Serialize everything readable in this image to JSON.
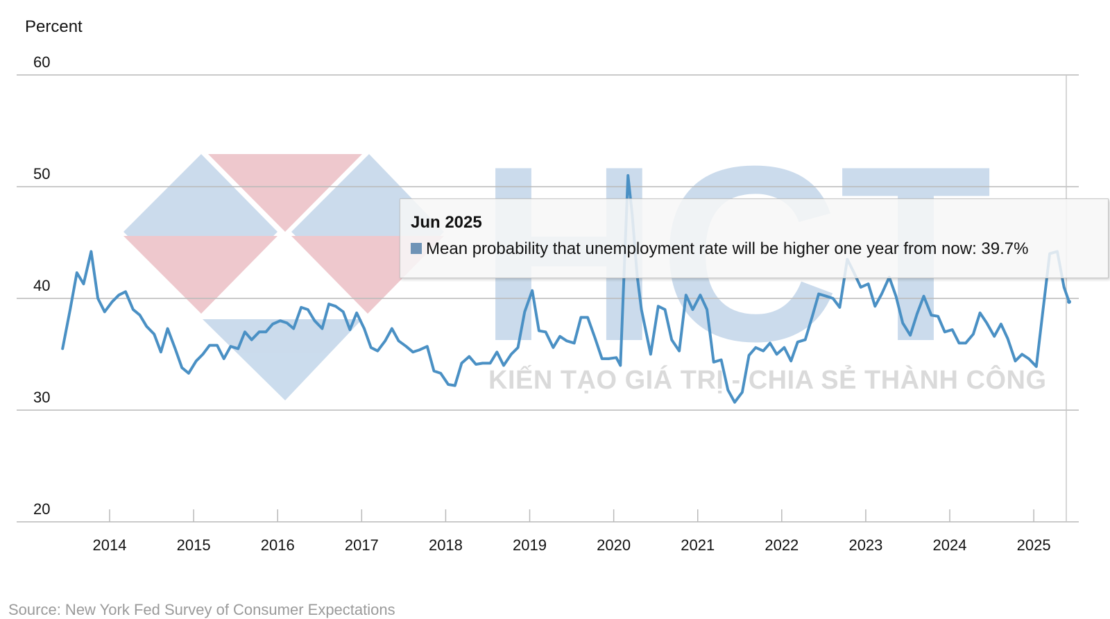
{
  "chart_data": {
    "type": "line",
    "ylabel": "Percent",
    "ylim": [
      20,
      60
    ],
    "yticks": [
      60,
      50,
      40,
      30,
      20
    ],
    "xlim": [
      2013.43,
      2025.42
    ],
    "xticks": [
      "2014",
      "2015",
      "2016",
      "2017",
      "2018",
      "2019",
      "2020",
      "2021",
      "2022",
      "2023",
      "2024",
      "2025"
    ],
    "grid": true,
    "series": [
      {
        "name": "Mean probability that unemployment rate will be higher one year from now",
        "color": "#4a90c4",
        "points": [
          [
            2013.44,
            35.5
          ],
          [
            2013.53,
            39.0
          ],
          [
            2013.61,
            42.3
          ],
          [
            2013.69,
            41.3
          ],
          [
            2013.78,
            44.2
          ],
          [
            2013.86,
            40.0
          ],
          [
            2013.94,
            38.8
          ],
          [
            2014.03,
            39.7
          ],
          [
            2014.11,
            40.3
          ],
          [
            2014.19,
            40.6
          ],
          [
            2014.28,
            39.0
          ],
          [
            2014.36,
            38.5
          ],
          [
            2014.44,
            37.5
          ],
          [
            2014.53,
            36.8
          ],
          [
            2014.61,
            35.2
          ],
          [
            2014.69,
            37.3
          ],
          [
            2014.78,
            35.5
          ],
          [
            2014.86,
            33.8
          ],
          [
            2014.94,
            33.3
          ],
          [
            2015.03,
            34.4
          ],
          [
            2015.11,
            35.0
          ],
          [
            2015.19,
            35.8
          ],
          [
            2015.28,
            35.8
          ],
          [
            2015.36,
            34.6
          ],
          [
            2015.44,
            35.7
          ],
          [
            2015.53,
            35.5
          ],
          [
            2015.61,
            37.0
          ],
          [
            2015.69,
            36.3
          ],
          [
            2015.78,
            37.0
          ],
          [
            2015.86,
            37.0
          ],
          [
            2015.94,
            37.7
          ],
          [
            2016.03,
            38.0
          ],
          [
            2016.11,
            37.8
          ],
          [
            2016.19,
            37.3
          ],
          [
            2016.28,
            39.2
          ],
          [
            2016.36,
            39.0
          ],
          [
            2016.44,
            38.0
          ],
          [
            2016.53,
            37.3
          ],
          [
            2016.61,
            39.5
          ],
          [
            2016.69,
            39.3
          ],
          [
            2016.78,
            38.8
          ],
          [
            2016.86,
            37.2
          ],
          [
            2016.94,
            38.7
          ],
          [
            2017.03,
            37.3
          ],
          [
            2017.11,
            35.6
          ],
          [
            2017.19,
            35.3
          ],
          [
            2017.28,
            36.2
          ],
          [
            2017.36,
            37.3
          ],
          [
            2017.44,
            36.2
          ],
          [
            2017.53,
            35.7
          ],
          [
            2017.61,
            35.2
          ],
          [
            2017.69,
            35.4
          ],
          [
            2017.78,
            35.7
          ],
          [
            2017.86,
            33.5
          ],
          [
            2017.94,
            33.3
          ],
          [
            2018.03,
            32.3
          ],
          [
            2018.11,
            32.2
          ],
          [
            2018.19,
            34.2
          ],
          [
            2018.28,
            34.8
          ],
          [
            2018.36,
            34.1
          ],
          [
            2018.44,
            34.2
          ],
          [
            2018.53,
            34.2
          ],
          [
            2018.61,
            35.2
          ],
          [
            2018.69,
            34.0
          ],
          [
            2018.78,
            35.0
          ],
          [
            2018.86,
            35.6
          ],
          [
            2018.94,
            38.8
          ],
          [
            2019.03,
            40.7
          ],
          [
            2019.11,
            37.1
          ],
          [
            2019.19,
            37.0
          ],
          [
            2019.28,
            35.6
          ],
          [
            2019.36,
            36.6
          ],
          [
            2019.44,
            36.2
          ],
          [
            2019.53,
            36.0
          ],
          [
            2019.61,
            38.3
          ],
          [
            2019.69,
            38.3
          ],
          [
            2019.78,
            36.4
          ],
          [
            2019.86,
            34.6
          ],
          [
            2019.94,
            34.6
          ],
          [
            2020.03,
            34.7
          ],
          [
            2020.08,
            34.0
          ],
          [
            2020.17,
            51.0
          ],
          [
            2020.22,
            47.5
          ],
          [
            2020.28,
            42.0
          ],
          [
            2020.33,
            39.0
          ],
          [
            2020.44,
            35.0
          ],
          [
            2020.53,
            39.3
          ],
          [
            2020.61,
            39.0
          ],
          [
            2020.69,
            36.3
          ],
          [
            2020.78,
            35.3
          ],
          [
            2020.86,
            40.3
          ],
          [
            2020.94,
            39.0
          ],
          [
            2021.03,
            40.3
          ],
          [
            2021.11,
            39.0
          ],
          [
            2021.19,
            34.3
          ],
          [
            2021.28,
            34.5
          ],
          [
            2021.36,
            31.8
          ],
          [
            2021.44,
            30.7
          ],
          [
            2021.53,
            31.6
          ],
          [
            2021.61,
            34.9
          ],
          [
            2021.69,
            35.6
          ],
          [
            2021.78,
            35.3
          ],
          [
            2021.86,
            36.0
          ],
          [
            2021.94,
            35.0
          ],
          [
            2022.03,
            35.6
          ],
          [
            2022.11,
            34.4
          ],
          [
            2022.19,
            36.1
          ],
          [
            2022.28,
            36.3
          ],
          [
            2022.36,
            38.3
          ],
          [
            2022.44,
            40.4
          ],
          [
            2022.53,
            40.2
          ],
          [
            2022.61,
            40.0
          ],
          [
            2022.69,
            39.2
          ],
          [
            2022.78,
            43.5
          ],
          [
            2022.86,
            42.3
          ],
          [
            2022.94,
            41.0
          ],
          [
            2023.03,
            41.3
          ],
          [
            2023.11,
            39.3
          ],
          [
            2023.19,
            40.4
          ],
          [
            2023.28,
            41.9
          ],
          [
            2023.36,
            40.2
          ],
          [
            2023.44,
            37.8
          ],
          [
            2023.53,
            36.7
          ],
          [
            2023.61,
            38.6
          ],
          [
            2023.69,
            40.2
          ],
          [
            2023.78,
            38.5
          ],
          [
            2023.86,
            38.4
          ],
          [
            2023.94,
            37.0
          ],
          [
            2024.03,
            37.2
          ],
          [
            2024.11,
            36.0
          ],
          [
            2024.19,
            36.0
          ],
          [
            2024.28,
            36.8
          ],
          [
            2024.36,
            38.7
          ],
          [
            2024.44,
            37.8
          ],
          [
            2024.53,
            36.6
          ],
          [
            2024.61,
            37.7
          ],
          [
            2024.69,
            36.4
          ],
          [
            2024.78,
            34.4
          ],
          [
            2024.86,
            35.0
          ],
          [
            2024.94,
            34.6
          ],
          [
            2025.03,
            33.9
          ],
          [
            2025.11,
            39.0
          ],
          [
            2025.19,
            44.0
          ],
          [
            2025.28,
            44.2
          ],
          [
            2025.36,
            41.0
          ],
          [
            2025.42,
            39.7
          ]
        ]
      }
    ],
    "tooltip": {
      "title": "Jun 2025",
      "text": "Mean probability that unemployment rate will be higher one year from now: 39.7%"
    },
    "source": "Source: New York Fed Survey of Consumer Expectations"
  },
  "watermark": {
    "logo_text": "HCT",
    "tagline": "KIẾN TẠO GIÁ TRỊ - CHIA SẺ THÀNH CÔNG",
    "colors": {
      "blue": "#a9c4e1",
      "red": "#e3a5ad",
      "text": "#969696"
    }
  }
}
